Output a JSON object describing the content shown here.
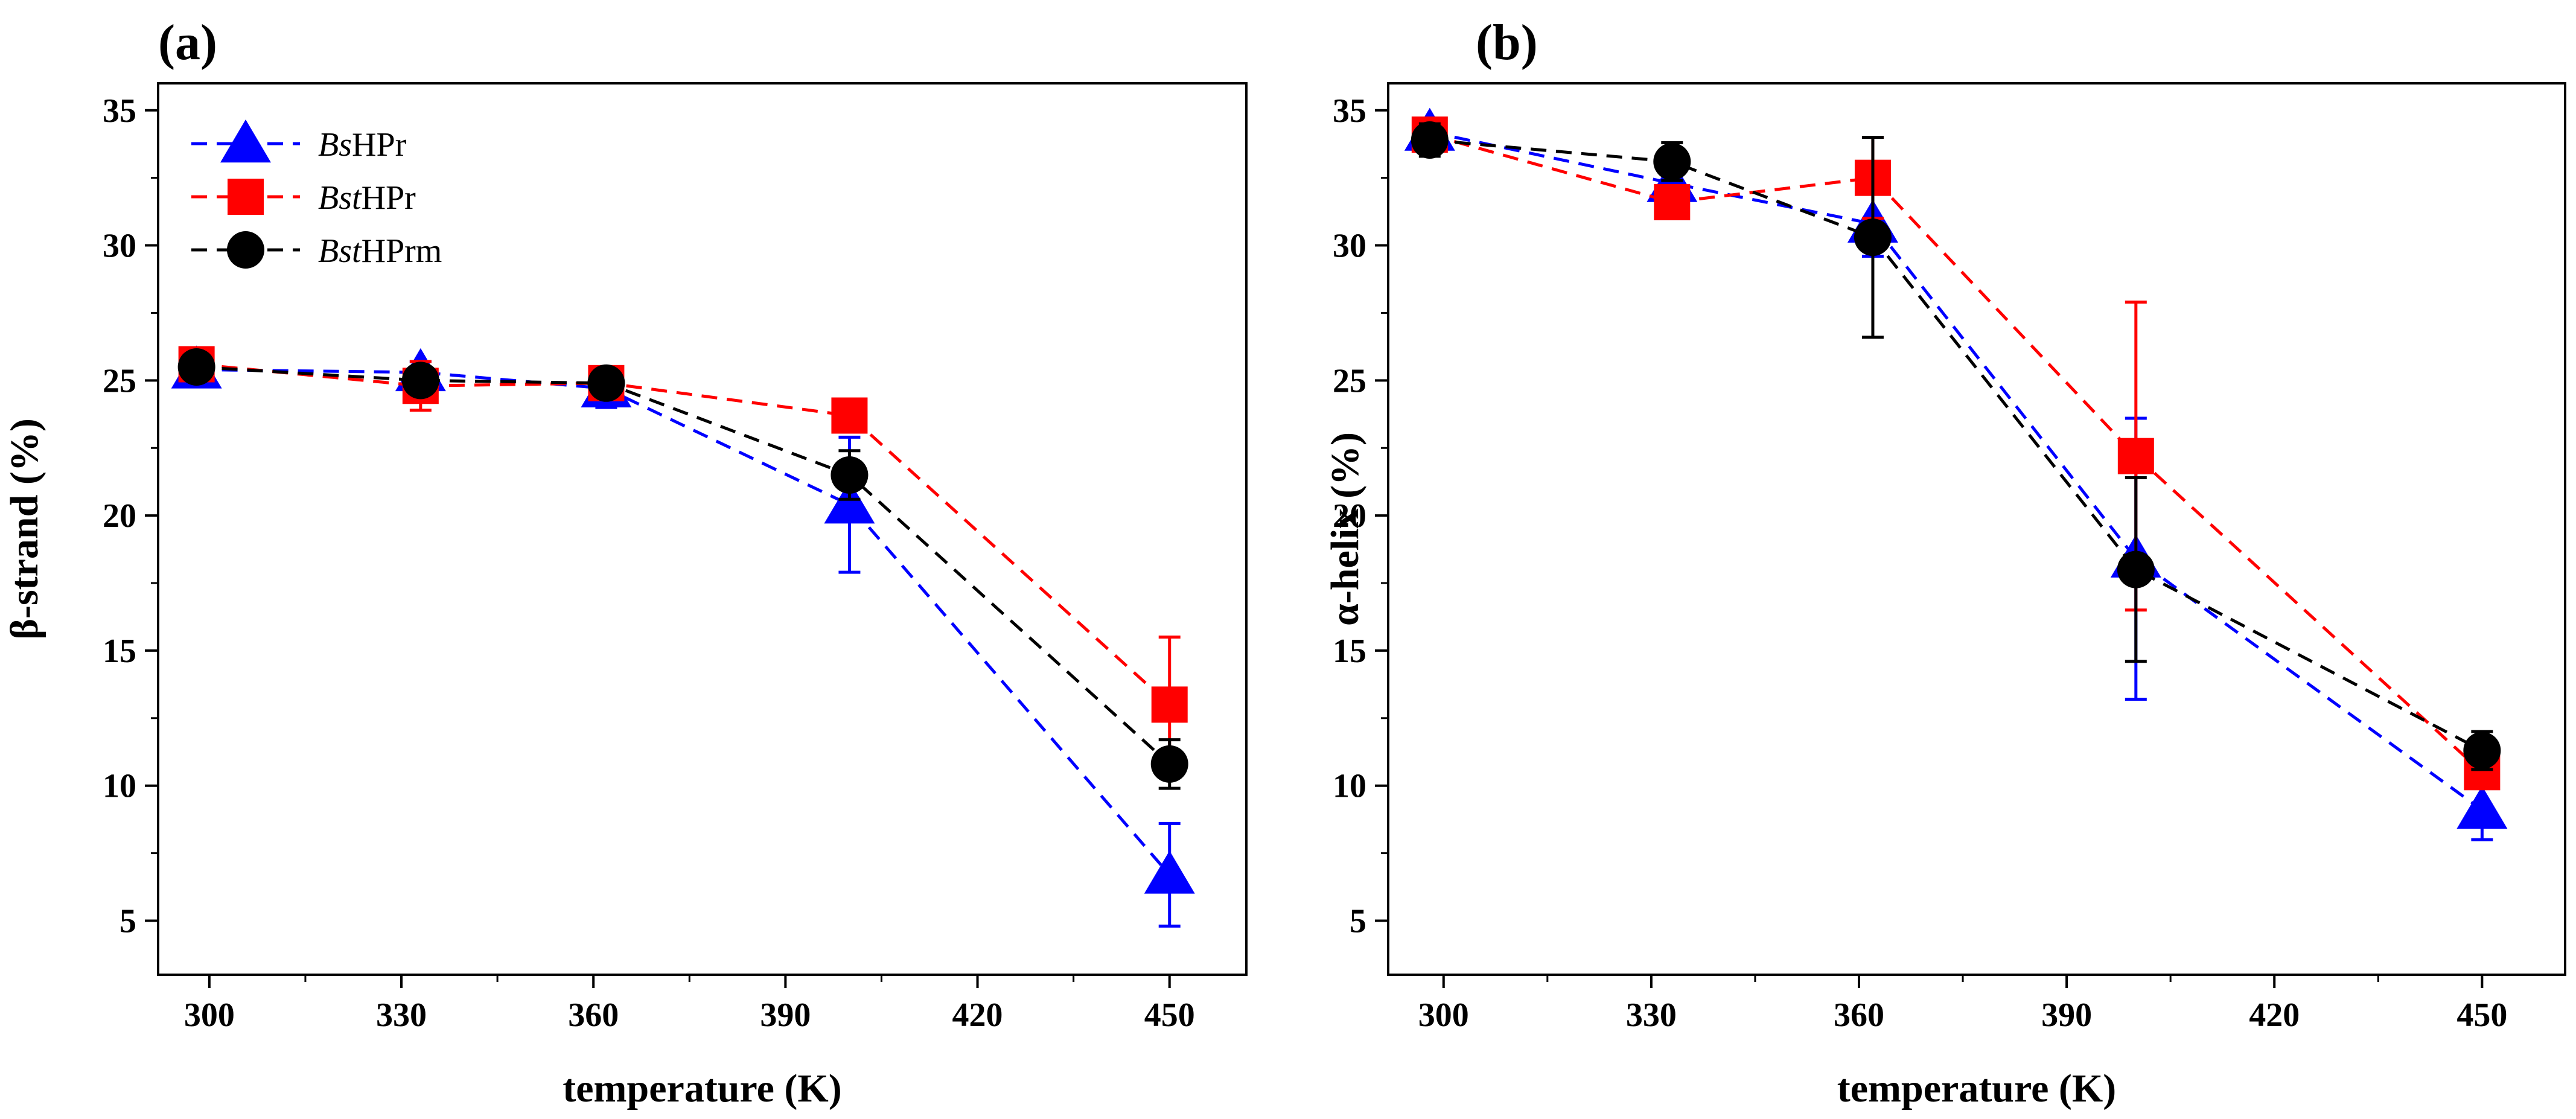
{
  "chart_data": [
    {
      "type": "line",
      "panel_label": "(a)",
      "title": "",
      "xlabel": "temperature (K)",
      "ylabel": "β-strand (%)",
      "xlim": [
        292,
        462
      ],
      "ylim": [
        3,
        36
      ],
      "xticks": [
        300,
        330,
        360,
        390,
        420,
        450
      ],
      "yticks": [
        5,
        10,
        15,
        20,
        25,
        30,
        35
      ],
      "x": [
        298,
        333,
        362,
        400,
        450
      ],
      "legend_position": "top-left",
      "series": [
        {
          "name_italic": "Bs",
          "name_rest": "HPr",
          "color": "#0000ff",
          "marker": "triangle",
          "values": [
            25.4,
            25.3,
            24.7,
            20.4,
            6.7
          ],
          "errors": [
            0.3,
            0.4,
            0.7,
            2.5,
            1.9
          ]
        },
        {
          "name_italic": "Bst",
          "name_rest": "HPr",
          "color": "#ff0000",
          "marker": "square",
          "values": [
            25.6,
            24.8,
            24.9,
            23.7,
            13.0
          ],
          "errors": [
            0.2,
            0.9,
            0.4,
            0.0,
            2.5
          ]
        },
        {
          "name_italic": "Bst",
          "name_rest": "HPrm",
          "color": "#000000",
          "marker": "circle",
          "values": [
            25.5,
            25.0,
            24.9,
            21.5,
            10.8
          ],
          "errors": [
            0.1,
            0.4,
            0.3,
            0.9,
            0.9
          ]
        }
      ]
    },
    {
      "type": "line",
      "panel_label": "(b)",
      "title": "",
      "xlabel": "temperature (K)",
      "ylabel": "α-helix (%)",
      "xlim": [
        292,
        462
      ],
      "ylim": [
        3,
        36
      ],
      "xticks": [
        300,
        330,
        360,
        390,
        420,
        450
      ],
      "yticks": [
        5,
        10,
        15,
        20,
        25,
        30,
        35
      ],
      "x": [
        298,
        333,
        362,
        400,
        450
      ],
      "legend_position": "none",
      "series": [
        {
          "name_italic": "Bs",
          "name_rest": "HPr",
          "color": "#0000ff",
          "marker": "triangle",
          "values": [
            34.2,
            32.3,
            30.8,
            18.4,
            9.1
          ],
          "errors": [
            0.3,
            1.2,
            1.2,
            5.2,
            1.1
          ]
        },
        {
          "name_italic": "Bst",
          "name_rest": "HPr",
          "color": "#ff0000",
          "marker": "square",
          "values": [
            34.1,
            31.6,
            32.5,
            22.2,
            10.5
          ],
          "errors": [
            0.2,
            0.4,
            1.5,
            5.7,
            0.2
          ]
        },
        {
          "name_italic": "Bst",
          "name_rest": "HPrm",
          "color": "#000000",
          "marker": "circle",
          "values": [
            33.9,
            33.1,
            30.3,
            18.0,
            11.3
          ],
          "errors": [
            0.6,
            0.7,
            3.7,
            3.4,
            0.7
          ]
        }
      ]
    }
  ]
}
